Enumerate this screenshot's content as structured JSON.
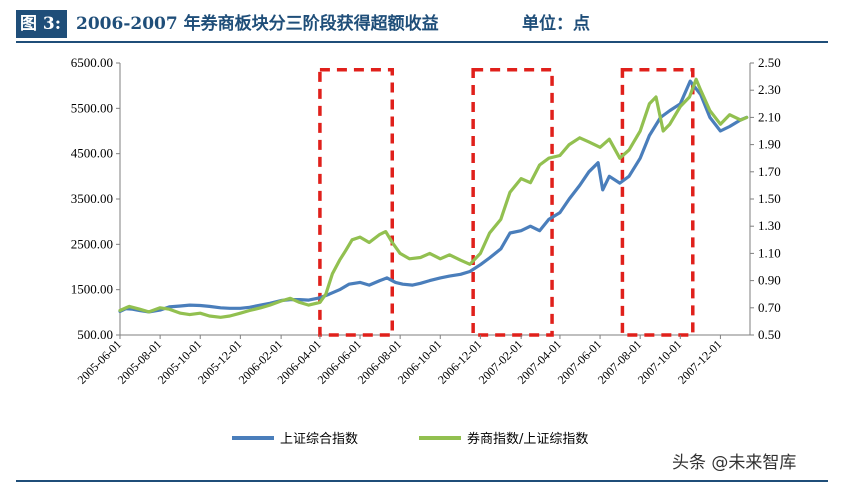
{
  "header": {
    "figure_label": "图 3:",
    "title": "2006-2007 年券商板块分三阶段获得超额收益",
    "unit": "单位：点"
  },
  "watermark": "头条 @未来智库",
  "colors": {
    "title_blue": "#1f4e79",
    "series_index": "#4a7ebb",
    "series_ratio": "#92c050",
    "highlight_box": "#e0201b"
  },
  "chart_data": {
    "type": "line",
    "title": "2006-2007 年券商板块分三阶段获得超额收益",
    "x": [
      "2005-06-01",
      "2005-08-01",
      "2005-10-01",
      "2005-12-01",
      "2006-02-01",
      "2006-04-01",
      "2006-06-01",
      "2006-08-01",
      "2006-10-01",
      "2006-12-01",
      "2007-02-01",
      "2007-04-01",
      "2007-06-01",
      "2007-08-01",
      "2007-10-01",
      "2007-12-01"
    ],
    "x_range": [
      "2005-06-01",
      "2008-01-15"
    ],
    "y_left": {
      "ticks": [
        "500.00",
        "1500.00",
        "2500.00",
        "3500.00",
        "4500.00",
        "5500.00",
        "6500.00"
      ],
      "ylim": [
        500,
        6500
      ]
    },
    "y_right": {
      "ticks": [
        "0.50",
        "0.70",
        "0.90",
        "1.10",
        "1.30",
        "1.50",
        "1.70",
        "1.90",
        "2.10",
        "2.30",
        "2.50"
      ],
      "ylim": [
        0.5,
        2.5
      ]
    },
    "series": [
      {
        "name": "上证综合指数",
        "axis": "left",
        "color": "#4a7ebb",
        "points": [
          [
            "2005-06-01",
            1020
          ],
          [
            "2005-06-10",
            1080
          ],
          [
            "2005-06-20",
            1070
          ],
          [
            "2005-07-01",
            1040
          ],
          [
            "2005-07-15",
            1010
          ],
          [
            "2005-08-01",
            1050
          ],
          [
            "2005-08-15",
            1120
          ],
          [
            "2005-09-01",
            1140
          ],
          [
            "2005-09-15",
            1160
          ],
          [
            "2005-10-01",
            1150
          ],
          [
            "2005-10-15",
            1130
          ],
          [
            "2005-11-01",
            1100
          ],
          [
            "2005-11-15",
            1090
          ],
          [
            "2005-12-01",
            1090
          ],
          [
            "2005-12-15",
            1110
          ],
          [
            "2006-01-01",
            1160
          ],
          [
            "2006-01-15",
            1200
          ],
          [
            "2006-02-01",
            1260
          ],
          [
            "2006-02-15",
            1280
          ],
          [
            "2006-03-01",
            1280
          ],
          [
            "2006-03-15",
            1270
          ],
          [
            "2006-04-01",
            1320
          ],
          [
            "2006-04-15",
            1400
          ],
          [
            "2006-05-01",
            1500
          ],
          [
            "2006-05-15",
            1620
          ],
          [
            "2006-06-01",
            1660
          ],
          [
            "2006-06-15",
            1600
          ],
          [
            "2006-07-01",
            1700
          ],
          [
            "2006-07-12",
            1760
          ],
          [
            "2006-07-25",
            1660
          ],
          [
            "2006-08-05",
            1620
          ],
          [
            "2006-08-20",
            1600
          ],
          [
            "2006-09-01",
            1640
          ],
          [
            "2006-09-15",
            1700
          ],
          [
            "2006-10-01",
            1760
          ],
          [
            "2006-10-15",
            1800
          ],
          [
            "2006-11-01",
            1840
          ],
          [
            "2006-11-15",
            1900
          ],
          [
            "2006-12-01",
            2050
          ],
          [
            "2006-12-15",
            2200
          ],
          [
            "2007-01-01",
            2400
          ],
          [
            "2007-01-15",
            2750
          ],
          [
            "2007-02-01",
            2800
          ],
          [
            "2007-02-15",
            2900
          ],
          [
            "2007-03-01",
            2800
          ],
          [
            "2007-03-15",
            3050
          ],
          [
            "2007-04-01",
            3200
          ],
          [
            "2007-04-15",
            3500
          ],
          [
            "2007-05-01",
            3800
          ],
          [
            "2007-05-15",
            4100
          ],
          [
            "2007-05-29",
            4300
          ],
          [
            "2007-06-05",
            3700
          ],
          [
            "2007-06-15",
            4000
          ],
          [
            "2007-07-01",
            3850
          ],
          [
            "2007-07-15",
            4000
          ],
          [
            "2007-08-01",
            4400
          ],
          [
            "2007-08-15",
            4900
          ],
          [
            "2007-09-01",
            5300
          ],
          [
            "2007-09-15",
            5450
          ],
          [
            "2007-10-01",
            5600
          ],
          [
            "2007-10-16",
            6100
          ],
          [
            "2007-11-01",
            5800
          ],
          [
            "2007-11-15",
            5300
          ],
          [
            "2007-12-01",
            5000
          ],
          [
            "2007-12-15",
            5100
          ],
          [
            "2008-01-01",
            5250
          ],
          [
            "2008-01-10",
            5300
          ]
        ]
      },
      {
        "name": "券商指数/上证综指数",
        "axis": "right",
        "color": "#92c050",
        "points": [
          [
            "2005-06-01",
            0.68
          ],
          [
            "2005-06-15",
            0.71
          ],
          [
            "2005-07-01",
            0.69
          ],
          [
            "2005-07-15",
            0.67
          ],
          [
            "2005-08-01",
            0.7
          ],
          [
            "2005-08-15",
            0.69
          ],
          [
            "2005-09-01",
            0.66
          ],
          [
            "2005-09-15",
            0.65
          ],
          [
            "2005-10-01",
            0.66
          ],
          [
            "2005-10-15",
            0.64
          ],
          [
            "2005-11-01",
            0.63
          ],
          [
            "2005-11-15",
            0.64
          ],
          [
            "2005-12-01",
            0.66
          ],
          [
            "2005-12-15",
            0.68
          ],
          [
            "2006-01-01",
            0.7
          ],
          [
            "2006-01-15",
            0.72
          ],
          [
            "2006-02-01",
            0.75
          ],
          [
            "2006-02-15",
            0.77
          ],
          [
            "2006-03-01",
            0.74
          ],
          [
            "2006-03-15",
            0.72
          ],
          [
            "2006-04-01",
            0.74
          ],
          [
            "2006-04-10",
            0.8
          ],
          [
            "2006-04-20",
            0.95
          ],
          [
            "2006-05-01",
            1.05
          ],
          [
            "2006-05-10",
            1.12
          ],
          [
            "2006-05-20",
            1.2
          ],
          [
            "2006-06-01",
            1.22
          ],
          [
            "2006-06-15",
            1.18
          ],
          [
            "2006-07-01",
            1.24
          ],
          [
            "2006-07-10",
            1.26
          ],
          [
            "2006-07-20",
            1.18
          ],
          [
            "2006-08-01",
            1.1
          ],
          [
            "2006-08-15",
            1.06
          ],
          [
            "2006-09-01",
            1.07
          ],
          [
            "2006-09-15",
            1.1
          ],
          [
            "2006-10-01",
            1.06
          ],
          [
            "2006-10-15",
            1.09
          ],
          [
            "2006-11-01",
            1.05
          ],
          [
            "2006-11-15",
            1.02
          ],
          [
            "2006-12-01",
            1.1
          ],
          [
            "2006-12-15",
            1.25
          ],
          [
            "2007-01-01",
            1.35
          ],
          [
            "2007-01-15",
            1.55
          ],
          [
            "2007-02-01",
            1.65
          ],
          [
            "2007-02-15",
            1.62
          ],
          [
            "2007-03-01",
            1.75
          ],
          [
            "2007-03-15",
            1.8
          ],
          [
            "2007-04-01",
            1.82
          ],
          [
            "2007-04-15",
            1.9
          ],
          [
            "2007-05-01",
            1.95
          ],
          [
            "2007-05-15",
            1.92
          ],
          [
            "2007-06-01",
            1.88
          ],
          [
            "2007-06-15",
            1.94
          ],
          [
            "2007-07-01",
            1.8
          ],
          [
            "2007-07-15",
            1.86
          ],
          [
            "2007-08-01",
            2.0
          ],
          [
            "2007-08-15",
            2.2
          ],
          [
            "2007-08-25",
            2.25
          ],
          [
            "2007-09-05",
            2.0
          ],
          [
            "2007-09-15",
            2.05
          ],
          [
            "2007-10-01",
            2.18
          ],
          [
            "2007-10-15",
            2.25
          ],
          [
            "2007-10-25",
            2.38
          ],
          [
            "2007-11-01",
            2.3
          ],
          [
            "2007-11-15",
            2.15
          ],
          [
            "2007-12-01",
            2.05
          ],
          [
            "2007-12-15",
            2.12
          ],
          [
            "2008-01-01",
            2.08
          ],
          [
            "2008-01-10",
            2.1
          ]
        ]
      }
    ],
    "highlight_periods": [
      {
        "start": "2006-04-01",
        "end": "2006-07-20"
      },
      {
        "start": "2006-11-20",
        "end": "2007-03-20"
      },
      {
        "start": "2007-07-05",
        "end": "2007-10-20"
      }
    ],
    "highlight_range_right": [
      0.5,
      2.45
    ],
    "legend": {
      "position": "bottom",
      "items": [
        "上证综合指数",
        "券商指数/上证综指数"
      ]
    }
  }
}
